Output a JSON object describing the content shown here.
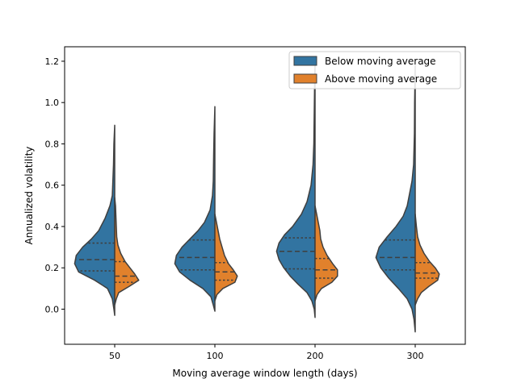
{
  "chart_data": {
    "type": "violin",
    "title": "",
    "xlabel": "Moving average window length (days)",
    "ylabel": "Annualized volatility",
    "categories": [
      "50",
      "100",
      "200",
      "300"
    ],
    "ylim": [
      -0.17,
      1.27
    ],
    "yticks": [
      0.0,
      0.2,
      0.4,
      0.6,
      0.8,
      1.0,
      1.2
    ],
    "ytick_labels": [
      "0.0",
      "0.2",
      "0.4",
      "0.6",
      "0.8",
      "1.0",
      "1.2"
    ],
    "grid": false,
    "legend_position": "top-right",
    "split": true,
    "inner": "quartile",
    "series": [
      {
        "name": "Below moving average",
        "color": "#3274a1",
        "groups": [
          {
            "profile": [
              [
                -0.03,
                0.0
              ],
              [
                0.0,
                0.02
              ],
              [
                0.05,
                0.06
              ],
              [
                0.1,
                0.18
              ],
              [
                0.14,
                0.5
              ],
              [
                0.18,
                0.9
              ],
              [
                0.22,
                1.0
              ],
              [
                0.26,
                0.96
              ],
              [
                0.3,
                0.8
              ],
              [
                0.34,
                0.58
              ],
              [
                0.38,
                0.4
              ],
              [
                0.44,
                0.24
              ],
              [
                0.5,
                0.12
              ],
              [
                0.55,
                0.06
              ],
              [
                0.6,
                0.05
              ],
              [
                0.7,
                0.03
              ],
              [
                0.8,
                0.02
              ],
              [
                0.89,
                0.0
              ]
            ],
            "quartiles": [
              0.185,
              0.24,
              0.32
            ]
          },
          {
            "profile": [
              [
                -0.01,
                0.0
              ],
              [
                0.02,
                0.04
              ],
              [
                0.06,
                0.1
              ],
              [
                0.1,
                0.3
              ],
              [
                0.14,
                0.62
              ],
              [
                0.18,
                0.88
              ],
              [
                0.22,
                1.0
              ],
              [
                0.26,
                0.96
              ],
              [
                0.3,
                0.82
              ],
              [
                0.34,
                0.62
              ],
              [
                0.38,
                0.42
              ],
              [
                0.42,
                0.26
              ],
              [
                0.48,
                0.12
              ],
              [
                0.55,
                0.06
              ],
              [
                0.62,
                0.04
              ],
              [
                0.75,
                0.03
              ],
              [
                0.85,
                0.02
              ],
              [
                0.98,
                0.0
              ]
            ],
            "quartiles": [
              0.19,
              0.25,
              0.335
            ]
          },
          {
            "profile": [
              [
                -0.04,
                0.0
              ],
              [
                0.0,
                0.02
              ],
              [
                0.04,
                0.08
              ],
              [
                0.08,
                0.2
              ],
              [
                0.12,
                0.42
              ],
              [
                0.16,
                0.62
              ],
              [
                0.2,
                0.78
              ],
              [
                0.24,
                0.9
              ],
              [
                0.28,
                0.96
              ],
              [
                0.32,
                0.9
              ],
              [
                0.36,
                0.76
              ],
              [
                0.4,
                0.56
              ],
              [
                0.46,
                0.34
              ],
              [
                0.52,
                0.2
              ],
              [
                0.6,
                0.1
              ],
              [
                0.7,
                0.05
              ],
              [
                0.8,
                0.03
              ],
              [
                0.95,
                0.02
              ],
              [
                1.1,
                0.01
              ],
              [
                1.18,
                0.0
              ]
            ],
            "quartiles": [
              0.195,
              0.28,
              0.345
            ]
          },
          {
            "profile": [
              [
                -0.11,
                0.0
              ],
              [
                -0.05,
                0.03
              ],
              [
                0.0,
                0.08
              ],
              [
                0.05,
                0.2
              ],
              [
                0.1,
                0.42
              ],
              [
                0.15,
                0.66
              ],
              [
                0.2,
                0.86
              ],
              [
                0.25,
                0.98
              ],
              [
                0.3,
                0.9
              ],
              [
                0.35,
                0.7
              ],
              [
                0.4,
                0.48
              ],
              [
                0.45,
                0.3
              ],
              [
                0.5,
                0.2
              ],
              [
                0.56,
                0.14
              ],
              [
                0.62,
                0.08
              ],
              [
                0.7,
                0.04
              ],
              [
                0.85,
                0.02
              ],
              [
                1.0,
                0.015
              ],
              [
                1.18,
                0.0
              ]
            ],
            "quartiles": [
              0.19,
              0.25,
              0.335
            ]
          }
        ]
      },
      {
        "name": "Above moving average",
        "color": "#e1812c",
        "groups": [
          {
            "profile": [
              [
                0.02,
                0.0
              ],
              [
                0.05,
                0.04
              ],
              [
                0.08,
                0.1
              ],
              [
                0.11,
                0.36
              ],
              [
                0.14,
                0.6
              ],
              [
                0.17,
                0.5
              ],
              [
                0.2,
                0.38
              ],
              [
                0.23,
                0.26
              ],
              [
                0.27,
                0.15
              ],
              [
                0.31,
                0.08
              ],
              [
                0.35,
                0.05
              ],
              [
                0.4,
                0.04
              ],
              [
                0.45,
                0.03
              ],
              [
                0.5,
                0.02
              ],
              [
                0.54,
                0.0
              ]
            ],
            "quartiles": [
              0.13,
              0.16,
              0.23
            ]
          },
          {
            "profile": [
              [
                0.04,
                0.0
              ],
              [
                0.07,
                0.05
              ],
              [
                0.1,
                0.2
              ],
              [
                0.13,
                0.5
              ],
              [
                0.16,
                0.56
              ],
              [
                0.19,
                0.46
              ],
              [
                0.22,
                0.34
              ],
              [
                0.26,
                0.24
              ],
              [
                0.3,
                0.18
              ],
              [
                0.34,
                0.12
              ],
              [
                0.38,
                0.08
              ],
              [
                0.42,
                0.04
              ],
              [
                0.46,
                0.0
              ]
            ],
            "quartiles": [
              0.14,
              0.18,
              0.225
            ]
          },
          {
            "profile": [
              [
                0.04,
                0.0
              ],
              [
                0.07,
                0.05
              ],
              [
                0.1,
                0.16
              ],
              [
                0.13,
                0.42
              ],
              [
                0.16,
                0.56
              ],
              [
                0.19,
                0.56
              ],
              [
                0.22,
                0.44
              ],
              [
                0.26,
                0.3
              ],
              [
                0.3,
                0.2
              ],
              [
                0.34,
                0.14
              ],
              [
                0.38,
                0.12
              ],
              [
                0.42,
                0.08
              ],
              [
                0.46,
                0.04
              ],
              [
                0.5,
                0.0
              ]
            ],
            "quartiles": [
              0.15,
              0.19,
              0.245
            ]
          },
          {
            "profile": [
              [
                0.02,
                0.0
              ],
              [
                0.05,
                0.06
              ],
              [
                0.08,
                0.15
              ],
              [
                0.11,
                0.34
              ],
              [
                0.14,
                0.56
              ],
              [
                0.17,
                0.6
              ],
              [
                0.2,
                0.5
              ],
              [
                0.23,
                0.36
              ],
              [
                0.27,
                0.22
              ],
              [
                0.31,
                0.12
              ],
              [
                0.35,
                0.06
              ],
              [
                0.4,
                0.03
              ],
              [
                0.46,
                0.0
              ]
            ],
            "quartiles": [
              0.15,
              0.175,
              0.225
            ]
          }
        ]
      }
    ]
  }
}
